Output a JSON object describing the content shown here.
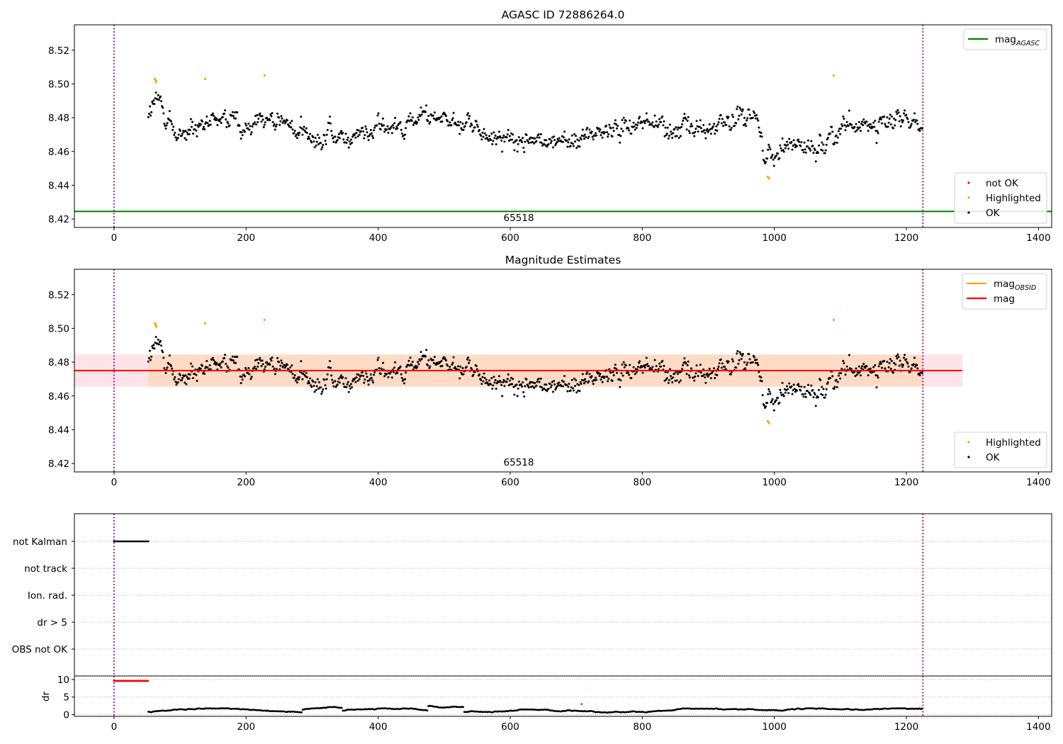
{
  "chart_data": [
    {
      "type": "scatter",
      "title": "AGASC ID 72886264.0",
      "xlim": [
        -60,
        1420
      ],
      "ylim": [
        8.415,
        8.535
      ],
      "xticks": [
        0,
        200,
        400,
        600,
        800,
        1000,
        1200,
        1400
      ],
      "yticks": [
        8.42,
        8.44,
        8.46,
        8.48,
        8.5,
        8.52
      ],
      "grid": false,
      "vlines": [
        0,
        1225
      ],
      "hlines": [
        {
          "name": "mag_AGASC",
          "y": 8.4245,
          "color": "#008000"
        }
      ],
      "obsid_label": "65518",
      "legends": [
        {
          "position": "top-right",
          "entries": [
            {
              "kind": "line",
              "color": "#008000",
              "label": "mag",
              "sub": "AGASC"
            }
          ]
        },
        {
          "position": "bottom-right",
          "entries": [
            {
              "kind": "dot",
              "color": "#ff0000",
              "label": "not OK"
            },
            {
              "kind": "dot",
              "color": "#ffa500",
              "label": "Highlighted"
            },
            {
              "kind": "dot",
              "color": "#000000",
              "label": "OK"
            }
          ]
        }
      ],
      "series": [
        {
          "name": "Highlighted",
          "color": "#ffa500",
          "x": [
            62,
            63,
            64,
            138,
            228,
            990,
            992,
            1090
          ],
          "y": [
            8.503,
            8.502,
            8.501,
            8.503,
            8.505,
            8.445,
            8.444,
            8.505
          ]
        },
        {
          "name": "OK",
          "color": "#000000",
          "x_range": [
            52,
            1225
          ]
        }
      ]
    },
    {
      "type": "scatter",
      "title": "Magnitude Estimates",
      "xlim": [
        -60,
        1420
      ],
      "ylim": [
        8.415,
        8.535
      ],
      "xticks": [
        0,
        200,
        400,
        600,
        800,
        1000,
        1200,
        1400
      ],
      "yticks": [
        8.42,
        8.44,
        8.46,
        8.48,
        8.5,
        8.52
      ],
      "grid": false,
      "vlines": [
        0,
        1225
      ],
      "band": {
        "x": [
          -60,
          1285
        ],
        "y": [
          8.4655,
          8.4845
        ]
      },
      "hlines": [
        {
          "name": "mag",
          "y": 8.475,
          "x": [
            -60,
            1285
          ],
          "color": "#ff0000"
        }
      ],
      "segments": [
        {
          "name": "mag_OBSID",
          "y": 8.475,
          "x": [
            52,
            1225
          ],
          "color": "#ffa500"
        }
      ],
      "obsid_label": "65518",
      "legends": [
        {
          "position": "top-right",
          "entries": [
            {
              "kind": "line",
              "color": "#ffa500",
              "label": "mag",
              "sub": "OBSID"
            },
            {
              "kind": "line",
              "color": "#ff0000",
              "label": "mag"
            }
          ]
        },
        {
          "position": "bottom-right",
          "entries": [
            {
              "kind": "dot",
              "color": "#ffa500",
              "label": "Highlighted"
            },
            {
              "kind": "dot",
              "color": "#000000",
              "label": "OK"
            }
          ]
        }
      ],
      "series": [
        {
          "name": "Highlighted",
          "color": "#ffa500",
          "x": [
            62,
            63,
            64,
            138,
            228,
            990,
            992,
            1090
          ],
          "y": [
            8.503,
            8.502,
            8.501,
            8.503,
            8.505,
            8.445,
            8.444,
            8.505
          ]
        },
        {
          "name": "OK",
          "color": "#000000",
          "x_range": [
            52,
            1225
          ]
        }
      ]
    },
    {
      "type": "scatter",
      "xlim": [
        -60,
        1420
      ],
      "categories": [
        "not Kalman",
        "not track",
        "Ion. rad.",
        "dr > 5",
        "OBS not OK"
      ],
      "grid": true,
      "vlines": [
        0,
        1225
      ],
      "series": [
        {
          "name": "not Kalman",
          "color": "#000000",
          "x_range": [
            0,
            52
          ]
        }
      ]
    },
    {
      "type": "scatter",
      "ylabel": "dr",
      "xlim": [
        -60,
        1420
      ],
      "ylim": [
        -0.5,
        11
      ],
      "xticks": [
        0,
        200,
        400,
        600,
        800,
        1000,
        1200,
        1400
      ],
      "yticks": [
        0,
        5,
        10
      ],
      "grid": true,
      "vlines": [
        0,
        1225
      ],
      "series": [
        {
          "name": "dr red",
          "color": "#ff0000",
          "x_range": [
            0,
            52
          ],
          "y": 9.6,
          "extra": [
            {
              "x": 708,
              "y": 3.0
            }
          ]
        },
        {
          "name": "dr",
          "color": "#000000",
          "x_range": [
            52,
            1225
          ]
        }
      ]
    }
  ]
}
